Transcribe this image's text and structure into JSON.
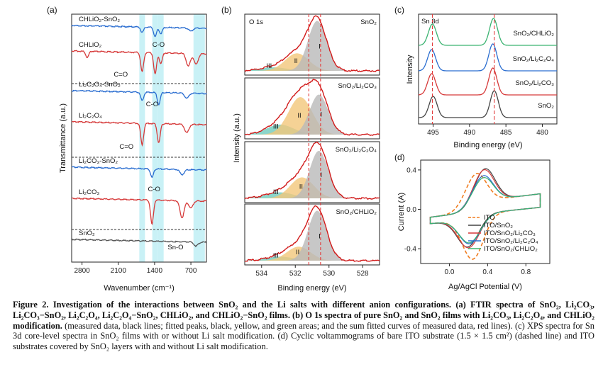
{
  "chart_data": [
    {
      "panel": "(a)",
      "type": "line",
      "xlabel": "Wavenumber (cm⁻¹)",
      "ylabel": "Transmittance (a.u.)",
      "xlim": [
        3000,
        400
      ],
      "xticks": [
        "2800",
        "2100",
        "1400",
        "700"
      ],
      "highlight_bands": [
        1640,
        1390,
        1280,
        540
      ],
      "series": [
        {
          "name": "CHLiO₂-SnO₂",
          "color": "#2a6dd0",
          "dips": [
            [
              1640,
              0.35
            ],
            [
              1390,
              0.6
            ],
            [
              1280,
              0.4
            ],
            [
              700,
              0.2
            ]
          ]
        },
        {
          "name": "CHLiO₂",
          "color": "#d63a3a",
          "dips": [
            [
              2700,
              0.3
            ],
            [
              1640,
              0.9
            ],
            [
              1390,
              1.0
            ],
            [
              1280,
              0.5
            ],
            [
              750,
              0.6
            ],
            [
              600,
              0.5
            ]
          ]
        },
        {
          "name": "Li₂C₂O₄-SnO₂",
          "color": "#2a6dd0",
          "dips": [
            [
              1640,
              0.5
            ],
            [
              1320,
              0.7
            ],
            [
              780,
              0.3
            ]
          ]
        },
        {
          "name": "Li₂C₂O₄",
          "color": "#d63a3a",
          "dips": [
            [
              1640,
              1.0
            ],
            [
              1320,
              0.9
            ],
            [
              780,
              0.4
            ]
          ]
        },
        {
          "name": "Li₂CO₃-SnO₂",
          "color": "#2a6dd0",
          "dips": [
            [
              1450,
              0.5
            ],
            [
              870,
              0.3
            ]
          ]
        },
        {
          "name": "Li₂CO₃",
          "color": "#d63a3a",
          "dips": [
            [
              1450,
              1.0
            ],
            [
              870,
              0.7
            ],
            [
              700,
              0.3
            ]
          ]
        },
        {
          "name": "SnO₂",
          "color": "#555555",
          "dips": [
            [
              600,
              0.4
            ]
          ]
        }
      ],
      "annotations": [
        "C-O",
        "C=O",
        "C-O",
        "C=O",
        "C-O",
        "Sn-O"
      ]
    },
    {
      "panel": "(b)",
      "type": "area",
      "title": "O 1s",
      "xlabel": "Binding energy (eV)",
      "ylabel": "Intensity (a.u.)",
      "xlim": [
        535,
        527
      ],
      "xticks": [
        "534",
        "532",
        "530",
        "528"
      ],
      "reference_lines": [
        531.2,
        530.5
      ],
      "peak_labels": [
        "I",
        "II",
        "III"
      ],
      "subplots": [
        {
          "name": "SnO₂",
          "peaks": [
            {
              "label": "I",
              "center": 530.7,
              "height": 1.0
            },
            {
              "label": "II",
              "center": 531.9,
              "height": 0.35
            },
            {
              "label": "III",
              "center": 533.3,
              "height": 0.07
            }
          ]
        },
        {
          "name": "SnO₂/Li₂CO₃",
          "peaks": [
            {
              "label": "I",
              "center": 530.6,
              "height": 0.8
            },
            {
              "label": "II",
              "center": 531.7,
              "height": 0.75
            },
            {
              "label": "III",
              "center": 532.9,
              "height": 0.2
            }
          ]
        },
        {
          "name": "SnO₂/Li₂C₂O₄",
          "peaks": [
            {
              "label": "I",
              "center": 530.6,
              "height": 0.95
            },
            {
              "label": "II",
              "center": 531.6,
              "height": 0.42
            },
            {
              "label": "III",
              "center": 532.9,
              "height": 0.12
            }
          ]
        },
        {
          "name": "SnO₂/CHLiO₂",
          "peaks": [
            {
              "label": "I",
              "center": 530.7,
              "height": 1.0
            },
            {
              "label": "II",
              "center": 531.8,
              "height": 0.28
            },
            {
              "label": "III",
              "center": 532.9,
              "height": 0.08
            }
          ]
        }
      ]
    },
    {
      "panel": "(c)",
      "type": "line",
      "title": "Sn 3d",
      "xlabel": "Binding energy (eV)",
      "ylabel": "Intensity",
      "xlim": [
        497,
        478
      ],
      "xticks": [
        "495",
        "490",
        "485",
        "480"
      ],
      "reference_lines": [
        495.1,
        486.6
      ],
      "series": [
        {
          "name": "SnO₂/CHLiO₂",
          "color": "#3bb371",
          "peaks": [
            495.1,
            486.7
          ]
        },
        {
          "name": "SnO₂/Li₂C₂O₄",
          "color": "#2a6dd0",
          "peaks": [
            495.2,
            486.8
          ]
        },
        {
          "name": "SnO₂/Li₂CO₃",
          "color": "#d63a3a",
          "peaks": [
            495.2,
            486.8
          ]
        },
        {
          "name": "SnO₂",
          "color": "#444444",
          "peaks": [
            495.0,
            486.6
          ]
        }
      ]
    },
    {
      "panel": "(d)",
      "type": "line",
      "xlabel": "Ag/AgCl Potential (V)",
      "ylabel": "Current (A)",
      "xlim": [
        -0.3,
        1.05
      ],
      "ylim": [
        -0.55,
        0.5
      ],
      "xticks": [
        "0.0",
        "0.4",
        "0.8"
      ],
      "yticks": [
        "0.4",
        "0.0",
        "-0.4"
      ],
      "series": [
        {
          "name": "ITO",
          "color": "#f07c1e",
          "dashed": true,
          "anodic_peak": [
            0.27,
            0.33
          ],
          "cathodic_peak": [
            0.25,
            -0.43
          ]
        },
        {
          "name": "ITO/SnO₂",
          "color": "#444444",
          "anodic_peak": [
            0.36,
            0.37
          ],
          "cathodic_peak": [
            0.2,
            -0.3
          ]
        },
        {
          "name": "ITO/SnO₂/Li₂CO₃",
          "color": "#d63a3a",
          "anodic_peak": [
            0.35,
            0.36
          ],
          "cathodic_peak": [
            0.21,
            -0.31
          ]
        },
        {
          "name": "ITO/SnO₂/Li₂C₂O₄",
          "color": "#2a6dd0",
          "anodic_peak": [
            0.34,
            0.3
          ],
          "cathodic_peak": [
            0.22,
            -0.27
          ]
        },
        {
          "name": "ITO/SnO₂/CHLiO₂",
          "color": "#3bb371",
          "anodic_peak": [
            0.34,
            0.28
          ],
          "cathodic_peak": [
            0.22,
            -0.26
          ]
        }
      ]
    }
  ],
  "caption": {
    "lead": "Figure 2. Investigation of the interactions between SnO₂ and the Li salts with different anion configurations. (a) FTIR spectra of SnO₂, Li₂CO₃, Li₂CO₃−SnO₂, Li₂C₂O₄, Li₂C₂O₄−SnO₂, CHLiO₂, and CHLiO₂−SnO₂ films. (b) O 1s spectra of pure SnO₂ and SnO₂ films with Li₂CO₃, Li₂C₂O₄, and CHLiO₂ modification.",
    "body": " (measured data, black lines; fitted peaks, black, yellow, and green areas; and the sum fitted curves of measured data, red lines). (c) XPS spectra for Sn 3d core-level spectra in SnO₂ films with or without Li salt modification. (d) Cyclic voltammograms of bare ITO substrate (1.5 × 1.5 cm²) (dashed line) and ITO substrates covered by SnO₂ layers with and without Li salt modification."
  }
}
